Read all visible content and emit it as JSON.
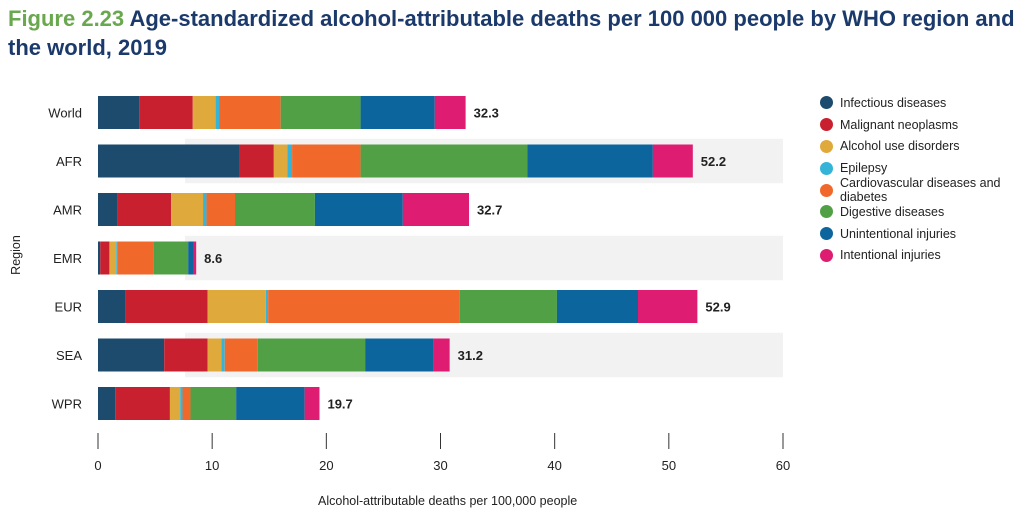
{
  "title": {
    "figure_number": "Figure 2.23",
    "text": "Age-standardized alcohol-attributable deaths per 100 000 people by WHO region and the world, 2019"
  },
  "chart_data": {
    "type": "bar",
    "orientation": "horizontal",
    "stacked": true,
    "categories": [
      "World",
      "AFR",
      "AMR",
      "EMR",
      "EUR",
      "SEA",
      "WPR"
    ],
    "series": [
      {
        "name": "Infectious diseases",
        "color": "#1d4b6e",
        "values": [
          3.6,
          12.4,
          1.7,
          0.2,
          2.4,
          5.8,
          1.5
        ]
      },
      {
        "name": "Malignant neoplasms",
        "color": "#c8202f",
        "values": [
          4.7,
          3.0,
          4.7,
          0.8,
          7.2,
          3.8,
          4.8
        ]
      },
      {
        "name": "Alcohol use disorders",
        "color": "#e0a93b",
        "values": [
          2.0,
          1.2,
          2.8,
          0.6,
          5.1,
          1.2,
          0.9
        ]
      },
      {
        "name": "Epilepsy",
        "color": "#36b4d8",
        "values": [
          0.3,
          0.4,
          0.3,
          0.1,
          0.2,
          0.3,
          0.2
        ]
      },
      {
        "name": "Cardiovascular diseases and diabetes",
        "color": "#f0692b",
        "values": [
          5.4,
          6.0,
          2.5,
          3.2,
          16.8,
          2.9,
          0.7
        ]
      },
      {
        "name": "Digestive diseases",
        "color": "#52a046",
        "values": [
          7.0,
          14.6,
          7.0,
          3.0,
          8.5,
          9.4,
          4.0
        ]
      },
      {
        "name": "Unintentional injuries",
        "color": "#0c659c",
        "values": [
          6.5,
          11.0,
          7.7,
          0.5,
          7.1,
          6.0,
          6.0
        ]
      },
      {
        "name": "Intentional injuries",
        "color": "#de1c71",
        "values": [
          2.7,
          3.5,
          5.8,
          0.2,
          5.2,
          1.4,
          1.3
        ]
      }
    ],
    "totals": [
      "32.3",
      "52.2",
      "32.7",
      "8.6",
      "52.9",
      "31.2",
      "19.7"
    ],
    "xlabel": "Alcohol-attributable deaths per 100,000 people",
    "ylabel": "Region",
    "xlim": [
      0,
      60
    ],
    "xticks": [
      0,
      10,
      20,
      30,
      40,
      50,
      60
    ],
    "grid": false,
    "legend_position": "right"
  }
}
